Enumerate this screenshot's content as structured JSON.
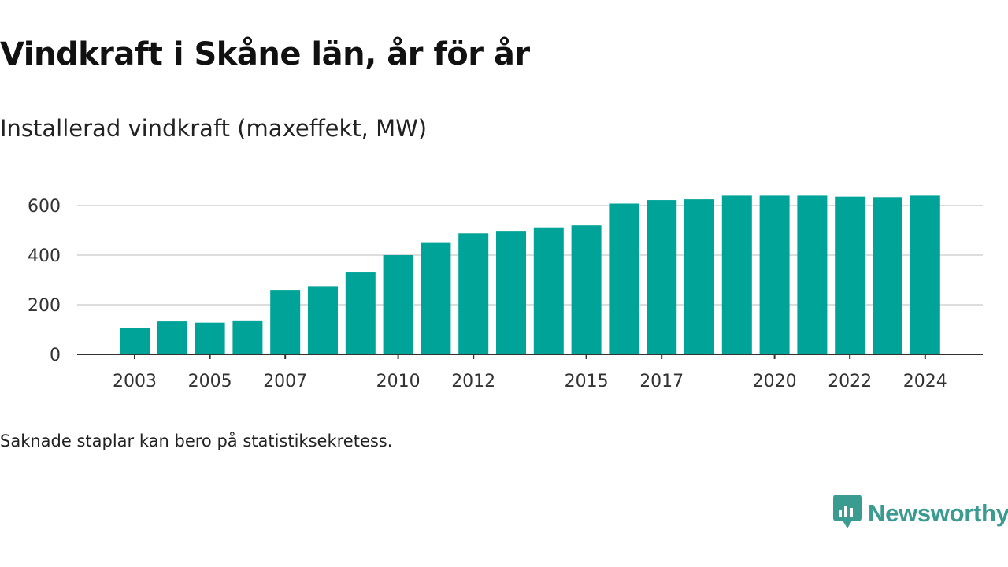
{
  "header": {
    "title": "Vindkraft i Skåne län, år för år",
    "subtitle": "Installerad vindkraft (maxeffekt, MW)"
  },
  "footnote": "Saknade staplar kan bero på statistiksekretess.",
  "brand": {
    "name": "Newsworthy",
    "icon": "newsworthy-logo-icon",
    "color": "#3a9b91"
  },
  "chart_data": {
    "type": "bar",
    "categories": [
      "2003",
      "2004",
      "2005",
      "2006",
      "2007",
      "2008",
      "2009",
      "2010",
      "2011",
      "2012",
      "2013",
      "2014",
      "2015",
      "2016",
      "2017",
      "2018",
      "2019",
      "2020",
      "2021",
      "2022",
      "2023",
      "2024"
    ],
    "values": [
      108,
      133,
      128,
      137,
      260,
      275,
      330,
      400,
      452,
      488,
      498,
      512,
      520,
      608,
      622,
      625,
      640,
      640,
      640,
      636,
      634,
      640
    ],
    "x_tick_labels": [
      "2003",
      "2005",
      "2007",
      "2010",
      "2012",
      "2015",
      "2017",
      "2020",
      "2022",
      "2024"
    ],
    "y_ticks": [
      0,
      200,
      400,
      600
    ],
    "ylim": [
      0,
      700
    ],
    "grid": true,
    "bar_color": "#00a398",
    "title": "Vindkraft i Skåne län, år för år",
    "ylabel": "Installerad vindkraft (maxeffekt, MW)",
    "xlabel": ""
  }
}
